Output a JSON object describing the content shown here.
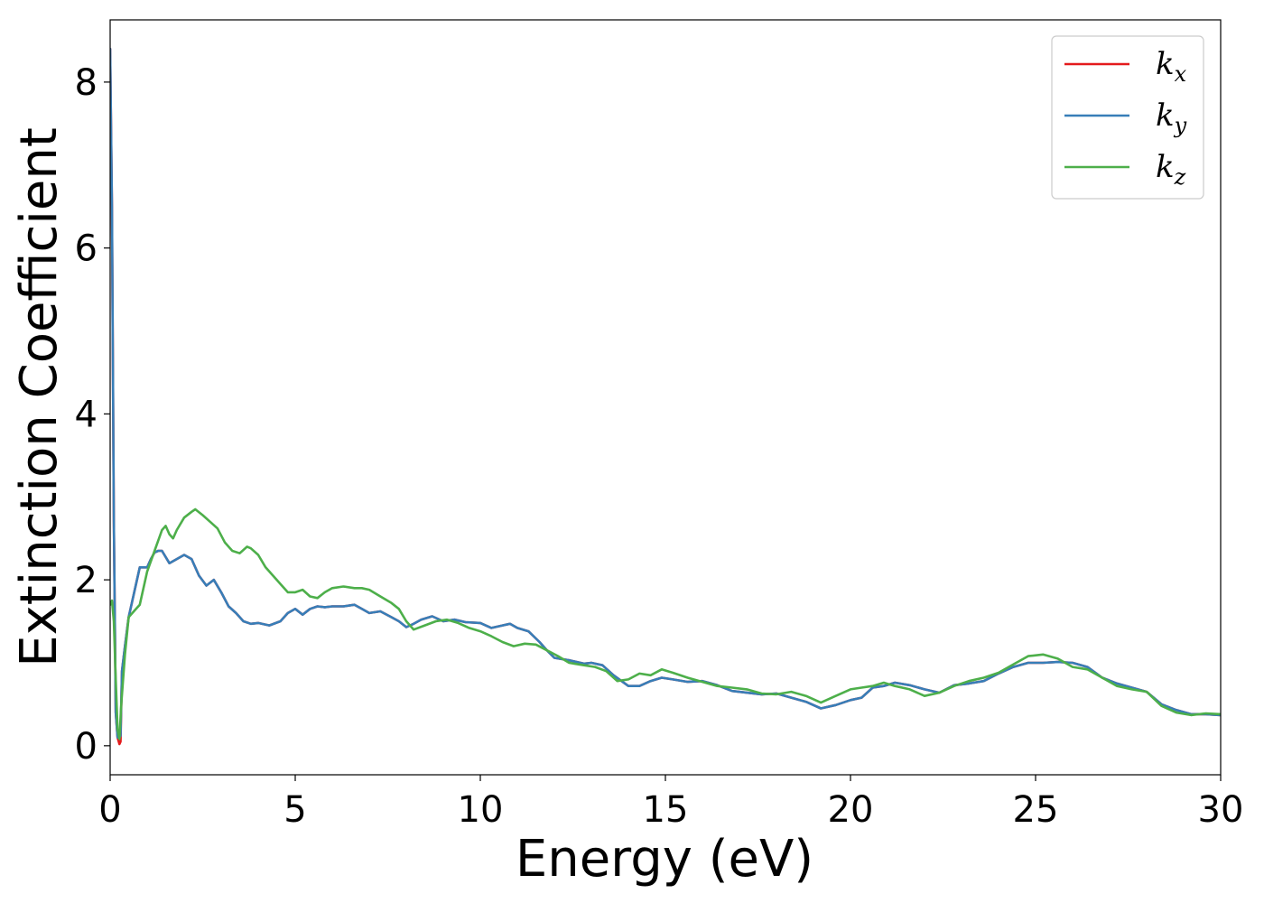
{
  "chart_data": {
    "type": "line",
    "title": "",
    "xlabel": "Energy (eV)",
    "ylabel": "Extinction Coefficient",
    "xlim": [
      0,
      30
    ],
    "ylim": [
      -0.35,
      8.75
    ],
    "xticks": [
      0,
      5,
      10,
      15,
      20,
      25,
      30
    ],
    "yticks": [
      0,
      2,
      4,
      6,
      8
    ],
    "grid": false,
    "legend_position": "top-right",
    "series": [
      {
        "name": "kx",
        "legend": {
          "base": "k",
          "sub": "x"
        },
        "color": "#e41a1c",
        "x": [
          0.0,
          0.05,
          0.1,
          0.15,
          0.2,
          0.25,
          0.28,
          0.32,
          0.4,
          0.5,
          0.6,
          0.7,
          0.8,
          0.9,
          1.0,
          1.1,
          1.2,
          1.3,
          1.4,
          1.6,
          1.8,
          2.0,
          2.2,
          2.4,
          2.6,
          2.8,
          3.0,
          3.2,
          3.4,
          3.6,
          3.8,
          4.0,
          4.3,
          4.6,
          4.8,
          5.0,
          5.2,
          5.4,
          5.6,
          5.8,
          6.0,
          6.3,
          6.6,
          6.8,
          7.0,
          7.3,
          7.6,
          7.8,
          8.0,
          8.2,
          8.4,
          8.7,
          9.0,
          9.3,
          9.6,
          10.0,
          10.3,
          10.6,
          10.8,
          11.0,
          11.3,
          11.6,
          11.8,
          12.0,
          12.4,
          12.8,
          13.0,
          13.3,
          13.6,
          14.0,
          14.3,
          14.6,
          14.9,
          15.2,
          15.6,
          16.0,
          16.4,
          16.8,
          17.2,
          17.6,
          18.0,
          18.4,
          18.8,
          19.2,
          19.6,
          20.0,
          20.3,
          20.6,
          20.9,
          21.2,
          21.6,
          22.0,
          22.4,
          22.8,
          23.2,
          23.6,
          24.0,
          24.4,
          24.8,
          25.2,
          25.6,
          26.0,
          26.4,
          26.8,
          27.2,
          27.6,
          28.0,
          28.4,
          28.8,
          29.2,
          29.6,
          30.0
        ],
        "values": [
          8.4,
          6.5,
          2.7,
          0.4,
          0.1,
          0.02,
          0.05,
          0.9,
          1.2,
          1.55,
          1.75,
          1.95,
          2.15,
          2.15,
          2.15,
          2.25,
          2.33,
          2.35,
          2.35,
          2.2,
          2.25,
          2.3,
          2.25,
          2.05,
          1.93,
          2.0,
          1.85,
          1.68,
          1.6,
          1.5,
          1.47,
          1.48,
          1.45,
          1.5,
          1.6,
          1.65,
          1.58,
          1.65,
          1.68,
          1.67,
          1.68,
          1.68,
          1.7,
          1.65,
          1.6,
          1.62,
          1.55,
          1.5,
          1.43,
          1.47,
          1.52,
          1.56,
          1.5,
          1.52,
          1.49,
          1.48,
          1.42,
          1.45,
          1.47,
          1.42,
          1.38,
          1.25,
          1.15,
          1.06,
          1.03,
          0.99,
          1.0,
          0.97,
          0.85,
          0.72,
          0.72,
          0.78,
          0.82,
          0.8,
          0.77,
          0.78,
          0.73,
          0.66,
          0.64,
          0.62,
          0.63,
          0.58,
          0.53,
          0.45,
          0.49,
          0.55,
          0.58,
          0.7,
          0.72,
          0.76,
          0.73,
          0.68,
          0.64,
          0.73,
          0.75,
          0.78,
          0.87,
          0.95,
          1.0,
          1.0,
          1.01,
          1.0,
          0.95,
          0.82,
          0.75,
          0.7,
          0.65,
          0.5,
          0.43,
          0.38,
          0.38,
          0.37
        ]
      },
      {
        "name": "ky",
        "legend": {
          "base": "k",
          "sub": "y"
        },
        "color": "#377eb8",
        "x": [
          0.0,
          0.05,
          0.1,
          0.15,
          0.2,
          0.25,
          0.28,
          0.32,
          0.4,
          0.5,
          0.6,
          0.7,
          0.8,
          0.9,
          1.0,
          1.1,
          1.2,
          1.3,
          1.4,
          1.6,
          1.8,
          2.0,
          2.2,
          2.4,
          2.6,
          2.8,
          3.0,
          3.2,
          3.4,
          3.6,
          3.8,
          4.0,
          4.3,
          4.6,
          4.8,
          5.0,
          5.2,
          5.4,
          5.6,
          5.8,
          6.0,
          6.3,
          6.6,
          6.8,
          7.0,
          7.3,
          7.6,
          7.8,
          8.0,
          8.2,
          8.4,
          8.7,
          9.0,
          9.3,
          9.6,
          10.0,
          10.3,
          10.6,
          10.8,
          11.0,
          11.3,
          11.6,
          11.8,
          12.0,
          12.4,
          12.8,
          13.0,
          13.3,
          13.6,
          14.0,
          14.3,
          14.6,
          14.9,
          15.2,
          15.6,
          16.0,
          16.4,
          16.8,
          17.2,
          17.6,
          18.0,
          18.4,
          18.8,
          19.2,
          19.6,
          20.0,
          20.3,
          20.6,
          20.9,
          21.2,
          21.6,
          22.0,
          22.4,
          22.8,
          23.2,
          23.6,
          24.0,
          24.4,
          24.8,
          25.2,
          25.6,
          26.0,
          26.4,
          26.8,
          27.2,
          27.6,
          28.0,
          28.4,
          28.8,
          29.2,
          29.6,
          30.0
        ],
        "values": [
          8.4,
          6.5,
          2.7,
          0.4,
          0.1,
          0.1,
          0.12,
          0.9,
          1.2,
          1.55,
          1.75,
          1.95,
          2.15,
          2.15,
          2.15,
          2.25,
          2.33,
          2.35,
          2.35,
          2.2,
          2.25,
          2.3,
          2.25,
          2.05,
          1.93,
          2.0,
          1.85,
          1.68,
          1.6,
          1.5,
          1.47,
          1.48,
          1.45,
          1.5,
          1.6,
          1.65,
          1.58,
          1.65,
          1.68,
          1.67,
          1.68,
          1.68,
          1.7,
          1.65,
          1.6,
          1.62,
          1.55,
          1.5,
          1.43,
          1.47,
          1.52,
          1.56,
          1.5,
          1.52,
          1.49,
          1.48,
          1.42,
          1.45,
          1.47,
          1.42,
          1.38,
          1.25,
          1.15,
          1.06,
          1.03,
          0.99,
          1.0,
          0.97,
          0.85,
          0.72,
          0.72,
          0.78,
          0.82,
          0.8,
          0.77,
          0.78,
          0.73,
          0.66,
          0.64,
          0.62,
          0.63,
          0.58,
          0.53,
          0.45,
          0.49,
          0.55,
          0.58,
          0.7,
          0.72,
          0.76,
          0.73,
          0.68,
          0.64,
          0.73,
          0.75,
          0.78,
          0.87,
          0.95,
          1.0,
          1.0,
          1.01,
          1.0,
          0.95,
          0.82,
          0.75,
          0.7,
          0.65,
          0.5,
          0.43,
          0.38,
          0.38,
          0.37
        ]
      },
      {
        "name": "kz",
        "legend": {
          "base": "k",
          "sub": "z"
        },
        "color": "#4daf4a",
        "x": [
          0.0,
          0.05,
          0.1,
          0.15,
          0.2,
          0.25,
          0.3,
          0.4,
          0.5,
          0.6,
          0.7,
          0.8,
          0.9,
          1.0,
          1.2,
          1.4,
          1.5,
          1.6,
          1.7,
          1.8,
          2.0,
          2.2,
          2.3,
          2.5,
          2.7,
          2.9,
          3.1,
          3.3,
          3.5,
          3.7,
          3.8,
          4.0,
          4.2,
          4.4,
          4.6,
          4.8,
          5.0,
          5.2,
          5.4,
          5.6,
          5.8,
          6.0,
          6.3,
          6.6,
          6.8,
          7.0,
          7.3,
          7.6,
          7.8,
          8.0,
          8.2,
          8.5,
          8.8,
          9.1,
          9.4,
          9.7,
          10.0,
          10.3,
          10.6,
          10.9,
          11.2,
          11.5,
          11.8,
          12.1,
          12.4,
          12.8,
          13.1,
          13.4,
          13.7,
          14.0,
          14.3,
          14.6,
          14.9,
          15.2,
          15.6,
          16.0,
          16.4,
          16.8,
          17.2,
          17.6,
          18.0,
          18.4,
          18.8,
          19.2,
          19.6,
          20.0,
          20.3,
          20.6,
          20.9,
          21.2,
          21.6,
          22.0,
          22.4,
          22.8,
          23.2,
          23.6,
          24.0,
          24.4,
          24.8,
          25.2,
          25.6,
          26.0,
          26.4,
          26.8,
          27.2,
          27.6,
          28.0,
          28.4,
          28.8,
          29.2,
          29.6,
          30.0
        ],
        "values": [
          1.7,
          1.75,
          1.5,
          0.8,
          0.2,
          0.08,
          0.5,
          1.1,
          1.55,
          1.6,
          1.65,
          1.7,
          1.9,
          2.1,
          2.35,
          2.6,
          2.65,
          2.55,
          2.5,
          2.6,
          2.75,
          2.82,
          2.85,
          2.78,
          2.7,
          2.62,
          2.45,
          2.35,
          2.32,
          2.4,
          2.38,
          2.3,
          2.15,
          2.05,
          1.95,
          1.85,
          1.85,
          1.88,
          1.8,
          1.78,
          1.85,
          1.9,
          1.92,
          1.9,
          1.9,
          1.88,
          1.8,
          1.72,
          1.65,
          1.5,
          1.4,
          1.45,
          1.5,
          1.52,
          1.48,
          1.42,
          1.38,
          1.32,
          1.25,
          1.2,
          1.23,
          1.22,
          1.15,
          1.08,
          1.0,
          0.97,
          0.95,
          0.9,
          0.78,
          0.8,
          0.87,
          0.85,
          0.92,
          0.88,
          0.82,
          0.77,
          0.72,
          0.7,
          0.68,
          0.63,
          0.62,
          0.65,
          0.6,
          0.52,
          0.6,
          0.68,
          0.7,
          0.72,
          0.76,
          0.72,
          0.68,
          0.6,
          0.64,
          0.72,
          0.78,
          0.82,
          0.88,
          0.98,
          1.08,
          1.1,
          1.05,
          0.95,
          0.92,
          0.82,
          0.72,
          0.68,
          0.65,
          0.48,
          0.4,
          0.37,
          0.39,
          0.38
        ]
      }
    ]
  }
}
